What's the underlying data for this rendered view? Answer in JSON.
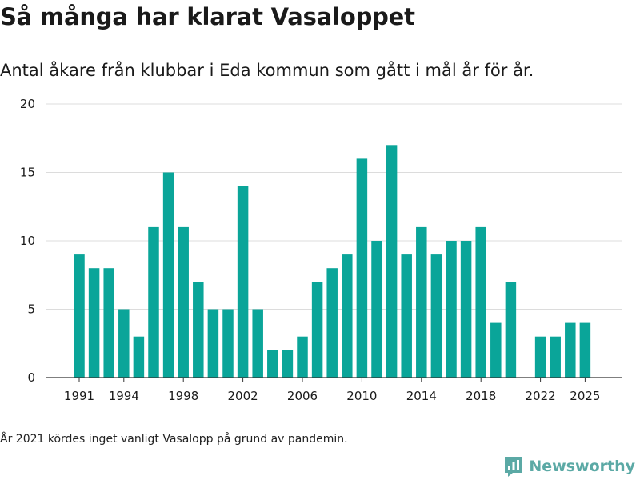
{
  "title": "Så många har klarat Vasaloppet",
  "subtitle": "Antal åkare från klubbar i Eda kommun som gått i mål år för år.",
  "note": "År 2021 kördes inget vanligt Vasalopp på grund av pandemin.",
  "brand": {
    "name": "Newsworthy",
    "color": "#5ba9a5"
  },
  "chart_data": {
    "type": "bar",
    "color": "#0aa599",
    "x": [
      1991,
      1992,
      1993,
      1994,
      1995,
      1996,
      1997,
      1998,
      1999,
      2000,
      2001,
      2002,
      2003,
      2004,
      2005,
      2006,
      2007,
      2008,
      2009,
      2010,
      2011,
      2012,
      2013,
      2014,
      2015,
      2016,
      2017,
      2018,
      2019,
      2020,
      2022,
      2023,
      2024,
      2025
    ],
    "values": [
      9,
      8,
      8,
      5,
      3,
      11,
      15,
      11,
      7,
      5,
      5,
      14,
      5,
      2,
      2,
      3,
      7,
      8,
      9,
      16,
      10,
      17,
      9,
      11,
      9,
      10,
      10,
      11,
      4,
      7,
      3,
      3,
      4,
      4
    ],
    "x_ticks": [
      "1991",
      "1994",
      "1998",
      "2002",
      "2006",
      "2010",
      "2014",
      "2018",
      "2022",
      "2025"
    ],
    "y_ticks": [
      "0",
      "5",
      "10",
      "15",
      "20"
    ],
    "ylim": [
      0,
      20
    ],
    "grid": true
  }
}
